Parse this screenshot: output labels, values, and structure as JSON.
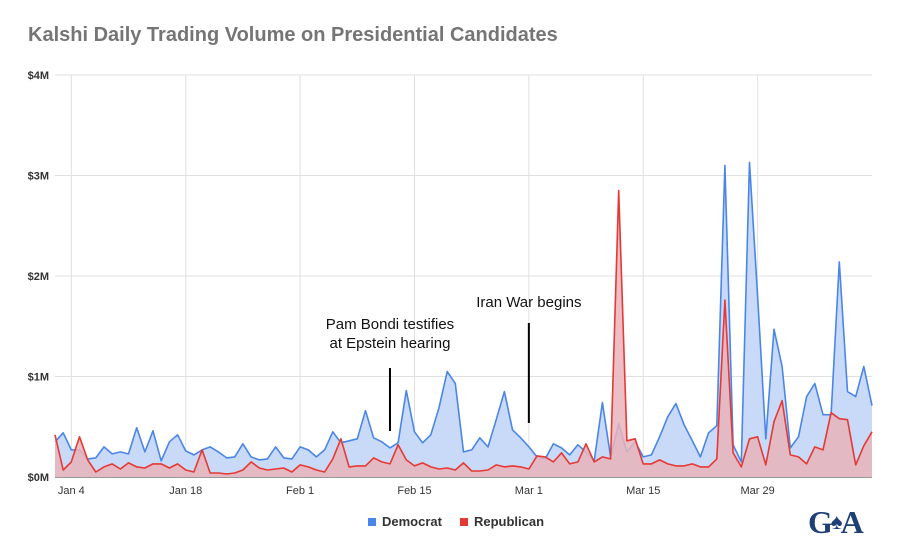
{
  "title": "Kalshi Daily Trading Volume on Presidential Candidates",
  "logo_text": "G A",
  "colors": {
    "democrat": "#4a86e8",
    "republican": "#e53935",
    "democrat_fill": "#c9daf8",
    "republican_fill": "#e8b4bb",
    "grid": "#e0e0e0"
  },
  "chart_data": {
    "type": "area",
    "title": "Kalshi Daily Trading Volume on Presidential Candidates",
    "start_date": "Jan 2",
    "ylim": [
      0,
      4000000
    ],
    "ytick_labels": [
      "$0M",
      "$1M",
      "$2M",
      "$3M",
      "$4M"
    ],
    "xtick_labels": [
      "Jan 4",
      "Jan 18",
      "Feb 1",
      "Feb 15",
      "Mar 1",
      "Mar 15",
      "Mar 29"
    ],
    "xtick_index": [
      2,
      16,
      30,
      44,
      58,
      72,
      86
    ],
    "grid": true,
    "legend_position": "bottom",
    "series": [
      {
        "name": "Democrat",
        "values": [
          350000,
          440000,
          270000,
          270000,
          180000,
          190000,
          300000,
          230000,
          250000,
          230000,
          490000,
          250000,
          460000,
          160000,
          350000,
          420000,
          260000,
          220000,
          270000,
          300000,
          250000,
          190000,
          200000,
          330000,
          200000,
          170000,
          180000,
          300000,
          190000,
          180000,
          300000,
          270000,
          200000,
          270000,
          450000,
          340000,
          360000,
          380000,
          660000,
          390000,
          350000,
          290000,
          340000,
          860000,
          450000,
          340000,
          420000,
          690000,
          1050000,
          930000,
          250000,
          270000,
          390000,
          300000,
          570000,
          850000,
          470000,
          390000,
          300000,
          200000,
          180000,
          330000,
          290000,
          220000,
          320000,
          250000,
          160000,
          740000,
          200000,
          530000,
          250000,
          350000,
          200000,
          220000,
          400000,
          600000,
          730000,
          520000,
          360000,
          200000,
          440000,
          510000,
          3100000,
          320000,
          150000,
          3130000,
          1800000,
          380000,
          1470000,
          1100000,
          290000,
          400000,
          800000,
          930000,
          620000,
          620000,
          2140000,
          850000,
          800000,
          1100000,
          710000
        ]
      },
      {
        "name": "Republican",
        "values": [
          420000,
          70000,
          150000,
          400000,
          170000,
          50000,
          100000,
          130000,
          80000,
          140000,
          100000,
          90000,
          130000,
          130000,
          90000,
          130000,
          70000,
          50000,
          270000,
          40000,
          40000,
          30000,
          40000,
          70000,
          150000,
          90000,
          70000,
          80000,
          90000,
          50000,
          120000,
          100000,
          70000,
          50000,
          180000,
          380000,
          100000,
          110000,
          110000,
          190000,
          150000,
          130000,
          320000,
          170000,
          110000,
          140000,
          100000,
          80000,
          90000,
          70000,
          140000,
          60000,
          60000,
          70000,
          120000,
          100000,
          110000,
          100000,
          80000,
          210000,
          200000,
          150000,
          240000,
          130000,
          150000,
          330000,
          150000,
          200000,
          180000,
          2850000,
          360000,
          380000,
          130000,
          130000,
          170000,
          130000,
          110000,
          110000,
          130000,
          100000,
          100000,
          180000,
          1760000,
          240000,
          100000,
          380000,
          400000,
          120000,
          550000,
          760000,
          220000,
          200000,
          130000,
          300000,
          270000,
          640000,
          580000,
          570000,
          120000,
          310000,
          450000
        ]
      }
    ],
    "annotations": [
      {
        "lines": [
          "Pam Bondi testifies",
          "at Epstein hearing"
        ],
        "index": 41
      },
      {
        "lines": [
          "Iran War begins"
        ],
        "index": 58
      }
    ]
  }
}
